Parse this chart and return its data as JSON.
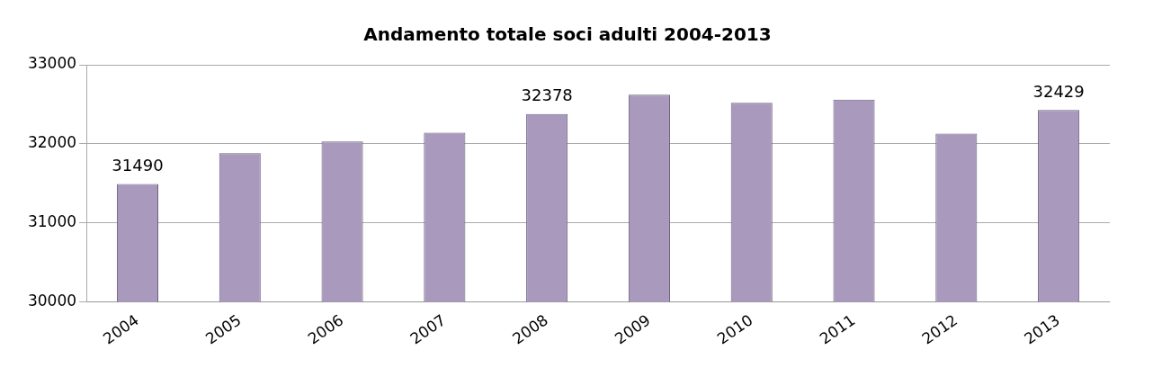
{
  "chart_data": {
    "type": "bar",
    "title": "Andamento totale soci adulti 2004-2013",
    "categories": [
      "2004",
      "2005",
      "2006",
      "2007",
      "2008",
      "2009",
      "2010",
      "2011",
      "2012",
      "2013"
    ],
    "values": [
      31490,
      31880,
      32030,
      32140,
      32378,
      32620,
      32520,
      32560,
      32130,
      32429
    ],
    "value_labels": [
      "31490",
      null,
      null,
      null,
      "32378",
      null,
      null,
      null,
      null,
      "32429"
    ],
    "color": "#a99abd",
    "ylim": [
      30000,
      33000
    ],
    "yticks": [
      30000,
      31000,
      32000,
      33000
    ],
    "grid": "y"
  }
}
